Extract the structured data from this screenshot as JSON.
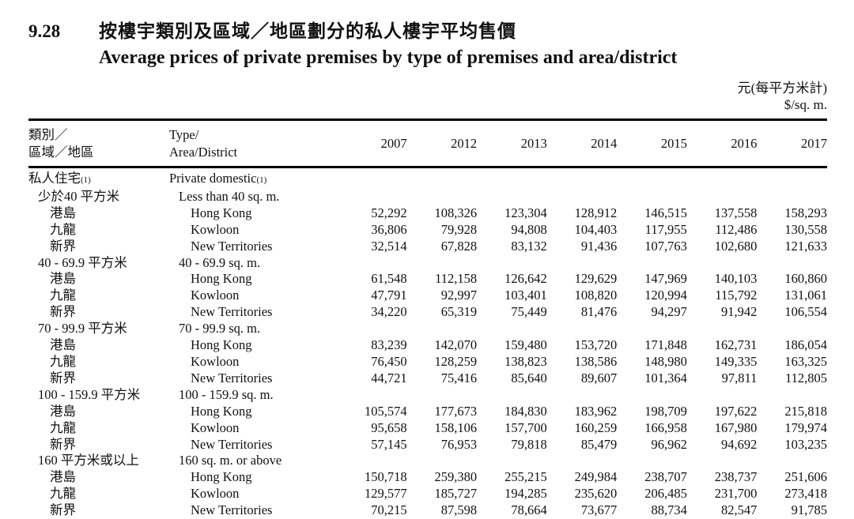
{
  "header": {
    "number": "9.28",
    "title_zh": "按樓宇類別及區域／地區劃分的私人樓宇平均售價",
    "title_en": "Average prices of private premises by type of premises and area/district",
    "unit_zh": "元(每平方米計)",
    "unit_en": "$/sq. m."
  },
  "table": {
    "col1_header": [
      "類別／",
      "區域／地區"
    ],
    "col2_header": [
      "Type/",
      "Area/District"
    ],
    "years": [
      "2007",
      "2012",
      "2013",
      "2014",
      "2015",
      "2016",
      "2017"
    ],
    "rows": [
      {
        "zh": "私人住宅",
        "zh_note": "(1)",
        "en": "Private domestic",
        "en_note": "(1)",
        "indent": 0,
        "values": []
      },
      {
        "zh": "少於40 平方米",
        "en": "Less than 40 sq. m.",
        "indent": 1,
        "values": []
      },
      {
        "zh": "港島",
        "en": "Hong Kong",
        "indent": 2,
        "values": [
          "52,292",
          "108,326",
          "123,304",
          "128,912",
          "146,515",
          "137,558",
          "158,293"
        ]
      },
      {
        "zh": "九龍",
        "en": "Kowloon",
        "indent": 2,
        "values": [
          "36,806",
          "79,928",
          "94,808",
          "104,403",
          "117,955",
          "112,486",
          "130,558"
        ]
      },
      {
        "zh": "新界",
        "en": "New Territories",
        "indent": 2,
        "values": [
          "32,514",
          "67,828",
          "83,132",
          "91,436",
          "107,763",
          "102,680",
          "121,633"
        ]
      },
      {
        "zh": "40 - 69.9 平方米",
        "en": "40 - 69.9 sq. m.",
        "indent": 1,
        "values": []
      },
      {
        "zh": "港島",
        "en": "Hong Kong",
        "indent": 2,
        "values": [
          "61,548",
          "112,158",
          "126,642",
          "129,629",
          "147,969",
          "140,103",
          "160,860"
        ]
      },
      {
        "zh": "九龍",
        "en": "Kowloon",
        "indent": 2,
        "values": [
          "47,791",
          "92,997",
          "103,401",
          "108,820",
          "120,994",
          "115,792",
          "131,061"
        ]
      },
      {
        "zh": "新界",
        "en": "New Territories",
        "indent": 2,
        "values": [
          "34,220",
          "65,319",
          "75,449",
          "81,476",
          "94,297",
          "91,942",
          "106,554"
        ]
      },
      {
        "zh": "70 - 99.9 平方米",
        "en": "70 - 99.9 sq. m.",
        "indent": 1,
        "values": []
      },
      {
        "zh": "港島",
        "en": "Hong Kong",
        "indent": 2,
        "values": [
          "83,239",
          "142,070",
          "159,480",
          "153,720",
          "171,848",
          "162,731",
          "186,054"
        ]
      },
      {
        "zh": "九龍",
        "en": "Kowloon",
        "indent": 2,
        "values": [
          "76,450",
          "128,259",
          "138,823",
          "138,586",
          "148,980",
          "149,335",
          "163,325"
        ]
      },
      {
        "zh": "新界",
        "en": "New Territories",
        "indent": 2,
        "values": [
          "44,721",
          "75,416",
          "85,640",
          "89,607",
          "101,364",
          "97,811",
          "112,805"
        ]
      },
      {
        "zh": "100 - 159.9 平方米",
        "en": "100 - 159.9 sq. m.",
        "indent": 1,
        "values": []
      },
      {
        "zh": "港島",
        "en": "Hong Kong",
        "indent": 2,
        "values": [
          "105,574",
          "177,673",
          "184,830",
          "183,962",
          "198,709",
          "197,622",
          "215,818"
        ]
      },
      {
        "zh": "九龍",
        "en": "Kowloon",
        "indent": 2,
        "values": [
          "95,658",
          "158,106",
          "157,700",
          "160,259",
          "166,958",
          "167,980",
          "179,974"
        ]
      },
      {
        "zh": "新界",
        "en": "New Territories",
        "indent": 2,
        "values": [
          "57,145",
          "76,953",
          "79,818",
          "85,479",
          "96,962",
          "94,692",
          "103,235"
        ]
      },
      {
        "zh": "160 平方米或以上",
        "en": "160 sq. m. or above",
        "indent": 1,
        "values": []
      },
      {
        "zh": "港島",
        "en": "Hong Kong",
        "indent": 2,
        "values": [
          "150,718",
          "259,380",
          "255,215",
          "249,984",
          "238,707",
          "238,737",
          "251,606"
        ]
      },
      {
        "zh": "九龍",
        "en": "Kowloon",
        "indent": 2,
        "values": [
          "129,577",
          "185,727",
          "194,285",
          "235,620",
          "206,485",
          "231,700",
          "273,418"
        ]
      },
      {
        "zh": "新界",
        "en": "New Territories",
        "indent": 2,
        "values": [
          "70,215",
          "87,598",
          "78,664",
          "73,677",
          "88,734",
          "82,547",
          "91,785"
        ]
      }
    ]
  }
}
